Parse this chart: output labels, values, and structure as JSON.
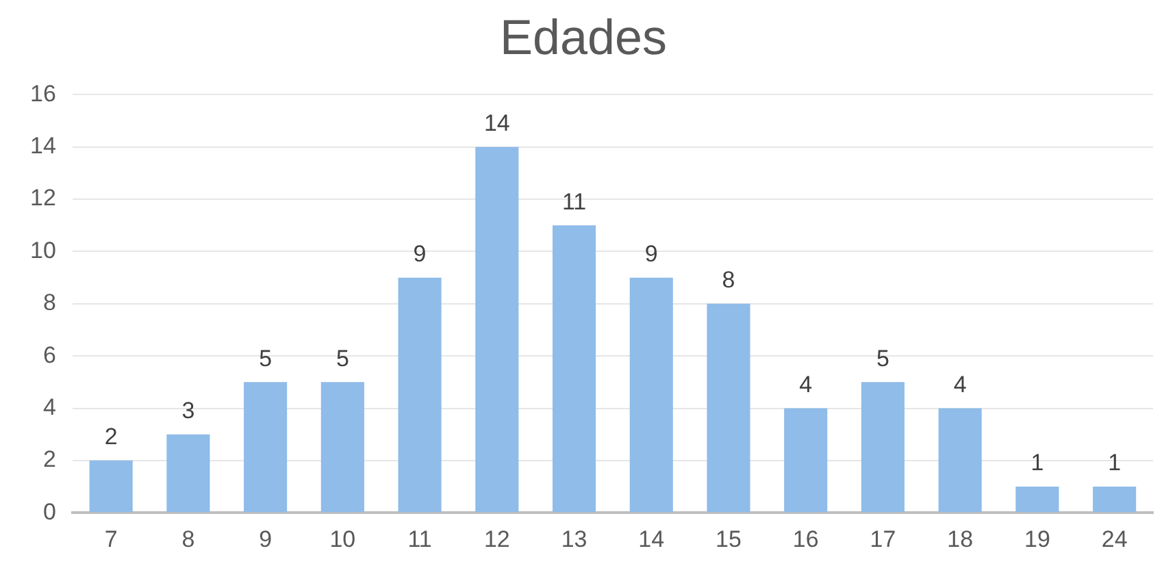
{
  "chart_data": {
    "type": "bar",
    "title": "Edades",
    "categories": [
      "7",
      "8",
      "9",
      "10",
      "11",
      "12",
      "13",
      "14",
      "15",
      "16",
      "17",
      "18",
      "19",
      "24"
    ],
    "values": [
      2,
      3,
      5,
      5,
      9,
      14,
      11,
      9,
      8,
      4,
      5,
      4,
      1,
      1
    ],
    "color": "#8fbce9",
    "ylim": [
      0,
      16
    ],
    "yticks": [
      0,
      2,
      4,
      6,
      8,
      10,
      12,
      14,
      16
    ],
    "grid": "y",
    "data_labels": true,
    "legend": false
  }
}
